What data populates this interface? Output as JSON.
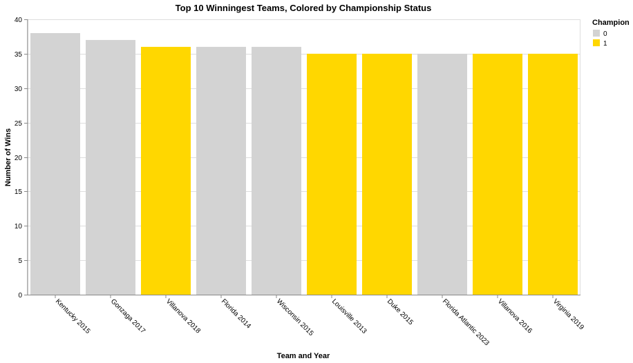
{
  "chart_data": {
    "type": "bar",
    "title": "Top 10 Winningest Teams, Colored by Championship Status",
    "xlabel": "Team and Year",
    "ylabel": "Number of Wins",
    "ylim": [
      0,
      40
    ],
    "yticks": [
      0,
      5,
      10,
      15,
      20,
      25,
      30,
      35,
      40
    ],
    "grid": true,
    "categories": [
      "Kentucky 2015",
      "Gonzaga 2017",
      "Villanova 2018",
      "Florida 2014",
      "Wisconsin 2015",
      "Louisville 2013",
      "Duke 2015",
      "Florida Atlantic 2023",
      "Villanova 2016",
      "Virginia 2019"
    ],
    "values": [
      38,
      37,
      36,
      36,
      36,
      35,
      35,
      35,
      35,
      35
    ],
    "champion": [
      0,
      0,
      1,
      0,
      0,
      1,
      1,
      0,
      1,
      1
    ],
    "legend": {
      "title": "Champion",
      "placement": "top-right",
      "entries": [
        {
          "label": "0",
          "color": "#d3d3d3"
        },
        {
          "label": "1",
          "color": "#ffd700"
        }
      ]
    }
  }
}
